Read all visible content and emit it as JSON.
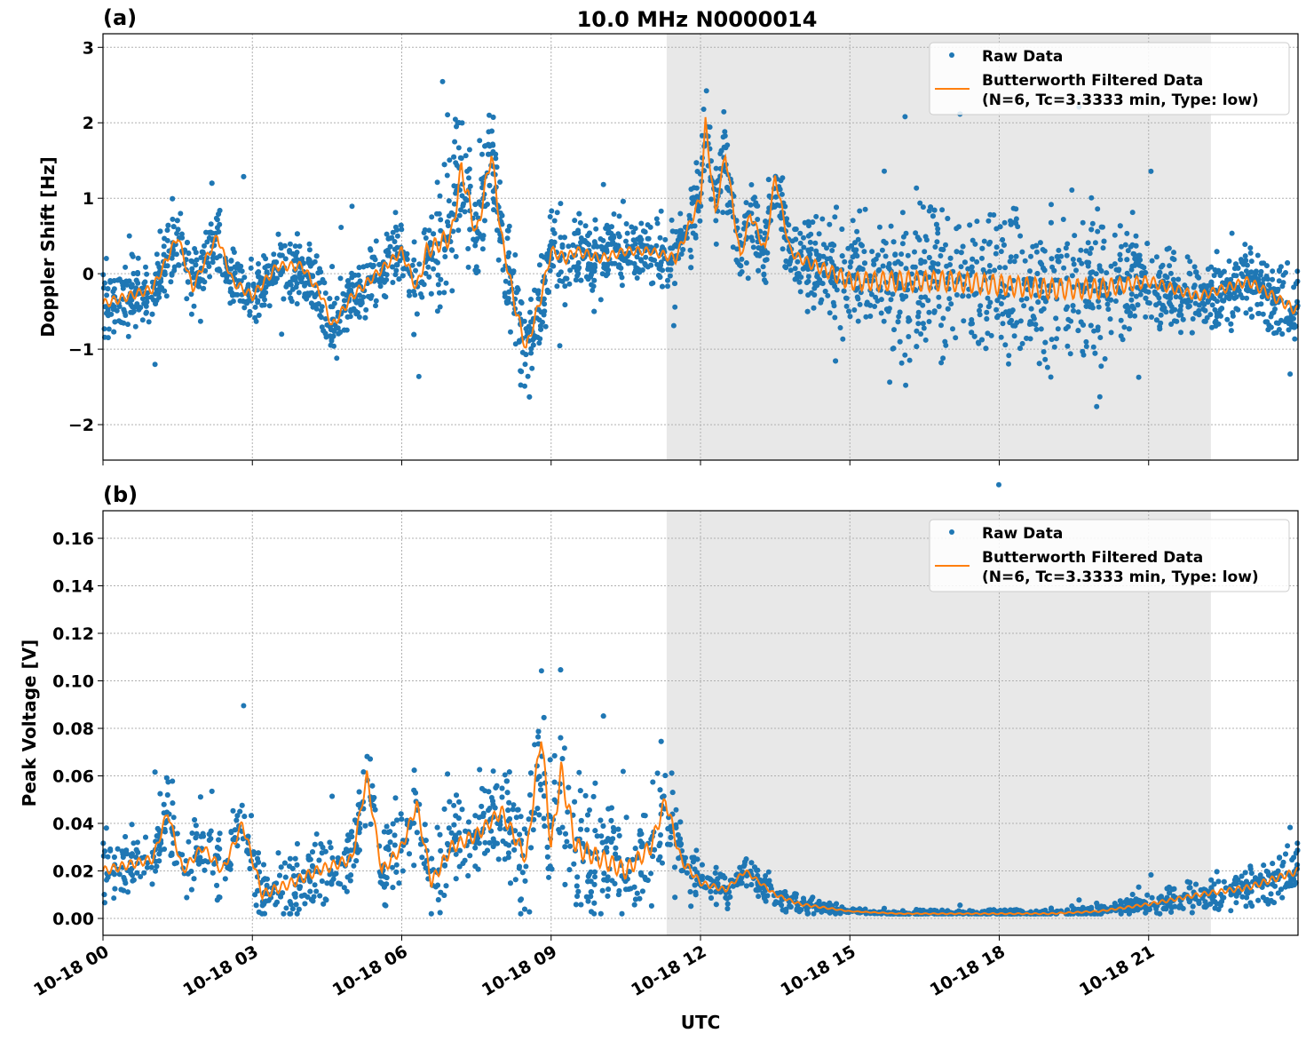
{
  "title": "10.0 MHz N0000014",
  "xlabel": "UTC",
  "x_ticks": [
    "10-18 00",
    "10-18 03",
    "10-18 06",
    "10-18 09",
    "10-18 12",
    "10-18 15",
    "10-18 18",
    "10-18 21"
  ],
  "x_tick_hours": [
    0,
    3,
    6,
    9,
    12,
    15,
    18,
    21
  ],
  "xlim_hours": [
    0,
    24
  ],
  "shaded_span_hours": [
    11.32,
    22.25
  ],
  "colors": {
    "raw": "#1f77b4",
    "filtered": "#ff7f0e",
    "shade": "#e8e8e8"
  },
  "chart_data": [
    {
      "type": "scatter+line",
      "panel_label": "(a)",
      "ylabel": "Doppler Shift [Hz]",
      "ylim": [
        -2.47,
        3.18
      ],
      "y_ticks": [
        3,
        2,
        1,
        0,
        -1,
        -2
      ],
      "y_tick_labels": [
        "3",
        "2",
        "1",
        "0",
        "−1",
        "−2"
      ],
      "grid": true,
      "legend": {
        "position": "top-right",
        "entries": [
          "Raw Data",
          "Butterworth Filtered Data",
          "(N=6, Tc=3.3333 min, Type: low)"
        ]
      },
      "filtered": {
        "hours": [
          0,
          0.5,
          1,
          1.5,
          1.8,
          2,
          2.3,
          2.6,
          3,
          3.5,
          4,
          4.4,
          4.6,
          5,
          5.5,
          6,
          6.3,
          6.5,
          7,
          7.2,
          7.5,
          7.8,
          8,
          8.3,
          8.5,
          8.8,
          9,
          9.3,
          9.5,
          10,
          10.5,
          11,
          11.5,
          12,
          12.1,
          12.3,
          12.5,
          12.8,
          13,
          13.3,
          13.5,
          13.8,
          14,
          15,
          16,
          17,
          18,
          19,
          20,
          21,
          22,
          23,
          24
        ],
        "values": [
          -0.4,
          -0.3,
          -0.2,
          0.5,
          -0.2,
          0.1,
          0.5,
          -0.1,
          -0.3,
          0.1,
          0.1,
          -0.3,
          -0.7,
          -0.3,
          0.0,
          0.3,
          -0.2,
          0.3,
          0.5,
          1.4,
          0.5,
          1.6,
          0.5,
          -0.5,
          -1.0,
          -0.3,
          0.3,
          0.2,
          0.3,
          0.2,
          0.3,
          0.3,
          0.2,
          1.0,
          2.0,
          0.8,
          1.6,
          0.2,
          0.8,
          0.3,
          1.3,
          0.3,
          0.2,
          -0.1,
          -0.1,
          -0.1,
          -0.15,
          -0.2,
          -0.2,
          -0.1,
          -0.3,
          -0.1,
          -0.5
        ]
      },
      "raw_spread": {
        "hours": [
          0,
          6,
          7,
          8,
          8.5,
          11,
          12,
          14,
          15,
          16,
          20,
          21,
          22,
          24
        ],
        "values": [
          0.4,
          0.4,
          0.9,
          0.6,
          0.5,
          0.35,
          0.5,
          0.4,
          0.8,
          0.9,
          0.9,
          0.5,
          0.4,
          0.45
        ]
      }
    },
    {
      "type": "scatter+line",
      "panel_label": "(b)",
      "ylabel": "Peak Voltage [V]",
      "ylim": [
        -0.0071,
        0.1716
      ],
      "y_ticks": [
        0.16,
        0.14,
        0.12,
        0.1,
        0.08,
        0.06,
        0.04,
        0.02,
        0.0
      ],
      "y_tick_labels": [
        "0.16",
        "0.14",
        "0.12",
        "0.10",
        "0.08",
        "0.06",
        "0.04",
        "0.02",
        "0.00"
      ],
      "grid": true,
      "legend": {
        "position": "top-right",
        "entries": [
          "Raw Data",
          "Butterworth Filtered Data",
          "(N=6, Tc=3.3333 min, Type: low)"
        ]
      },
      "filtered": {
        "hours": [
          0,
          1,
          1.3,
          1.6,
          2,
          2.4,
          2.8,
          3.2,
          3.8,
          4.3,
          5,
          5.3,
          5.6,
          6,
          6.3,
          6.6,
          7,
          7.5,
          8,
          8.5,
          8.8,
          9,
          9.2,
          9.5,
          10,
          10.5,
          11,
          11.3,
          11.6,
          12,
          12.5,
          12.9,
          13.5,
          14,
          15,
          16,
          19,
          20,
          21,
          22,
          23,
          24
        ],
        "values": [
          0.02,
          0.025,
          0.045,
          0.02,
          0.03,
          0.02,
          0.04,
          0.01,
          0.015,
          0.02,
          0.025,
          0.06,
          0.02,
          0.03,
          0.048,
          0.015,
          0.03,
          0.035,
          0.045,
          0.025,
          0.078,
          0.03,
          0.062,
          0.03,
          0.025,
          0.02,
          0.03,
          0.05,
          0.025,
          0.015,
          0.012,
          0.02,
          0.01,
          0.006,
          0.003,
          0.002,
          0.002,
          0.003,
          0.006,
          0.01,
          0.013,
          0.02
        ]
      },
      "raw_spread": {
        "hours": [
          0,
          5,
          8.5,
          9,
          11.3,
          12,
          14,
          15,
          20,
          22,
          24
        ],
        "values": [
          0.012,
          0.015,
          0.02,
          0.03,
          0.02,
          0.008,
          0.004,
          0.001,
          0.002,
          0.006,
          0.01
        ]
      }
    }
  ]
}
